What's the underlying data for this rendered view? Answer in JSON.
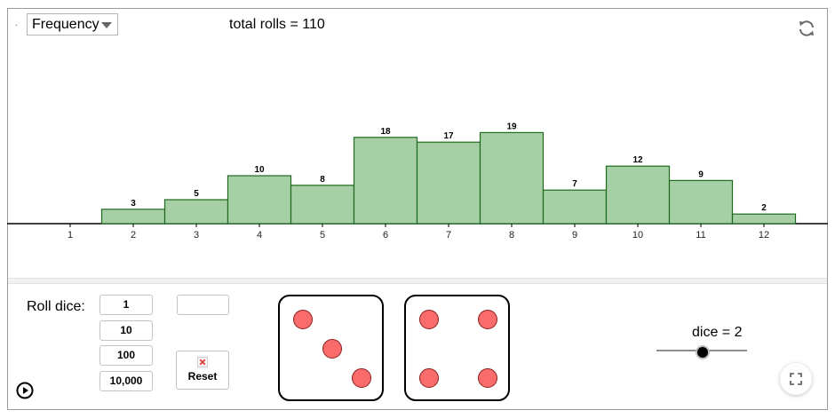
{
  "header": {
    "mode_select": {
      "value": "Frequency"
    },
    "total_label": "total rolls = 110"
  },
  "chart_data": {
    "type": "bar",
    "categories": [
      "1",
      "2",
      "3",
      "4",
      "5",
      "6",
      "7",
      "8",
      "9",
      "10",
      "11",
      "12"
    ],
    "values": [
      0,
      3,
      5,
      10,
      8,
      18,
      17,
      19,
      7,
      12,
      9,
      2
    ],
    "bar_labels": [
      "",
      "3",
      "5",
      "10",
      "8",
      "18",
      "17",
      "19",
      "7",
      "12",
      "9",
      "2"
    ],
    "title": "",
    "xlabel": "",
    "ylabel": "",
    "ylim": [
      0,
      20
    ],
    "grid": false,
    "colors": {
      "bar_fill": "#a7cfa6",
      "bar_stroke": "#1e6b1e",
      "axis": "#000000"
    }
  },
  "controls": {
    "roll_label": "Roll dice:",
    "roll_buttons": [
      "1",
      "10",
      "100",
      "10,000"
    ],
    "blank_field_value": "",
    "reset_label": "Reset"
  },
  "dice": {
    "faces": [
      3,
      4
    ],
    "pip_color": "#fa6b6b"
  },
  "slider": {
    "label": "dice = 2",
    "value": 2,
    "min": 1,
    "max": 4
  },
  "icons": {
    "refresh": "refresh-icon",
    "fullscreen": "fullscreen-icon",
    "play": "play-icon",
    "reset": "broken-image-icon"
  }
}
